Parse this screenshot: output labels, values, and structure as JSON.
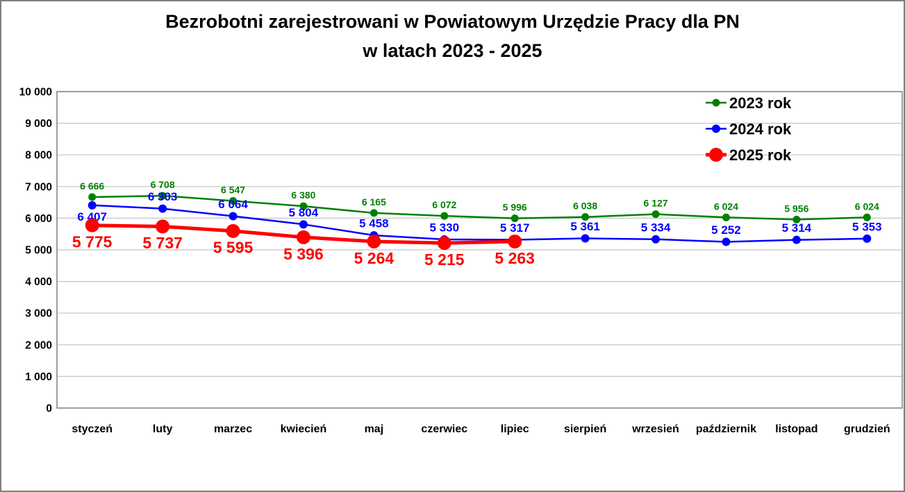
{
  "figure": {
    "title_line1": "Bezrobotni zarejestrowani w Powiatowym Urzędzie Pracy dla PN",
    "title_line2": "w latach 2023 - 2025"
  },
  "chart_data": {
    "type": "line",
    "title": "Bezrobotni zarejestrowani w Powiatowym Urzędzie Pracy dla PN w latach 2023 - 2025",
    "categories": [
      "styczeń",
      "luty",
      "marzec",
      "kwiecień",
      "maj",
      "czerwiec",
      "lipiec",
      "sierpień",
      "wrzesień",
      "październik",
      "listopad",
      "grudzień"
    ],
    "series": [
      {
        "name": "2023 rok",
        "color": "#008000",
        "values": [
          6666,
          6708,
          6547,
          6380,
          6165,
          6072,
          5996,
          6038,
          6127,
          6024,
          5956,
          6024
        ],
        "data_labels": [
          "6 666",
          "6 708",
          "6 547",
          "6 380",
          "6 165",
          "6 072",
          "5 996",
          "6 038",
          "6 127",
          "6 024",
          "5 956",
          "6 024"
        ]
      },
      {
        "name": "2024 rok",
        "color": "#0000ff",
        "values": [
          6407,
          6303,
          6064,
          5804,
          5458,
          5330,
          5317,
          5361,
          5334,
          5252,
          5314,
          5353
        ],
        "data_labels": [
          "6 407",
          "6 303",
          "6 064",
          "5 804",
          "5 458",
          "5 330",
          "5 317",
          "5 361",
          "5 334",
          "5 252",
          "5 314",
          "5 353"
        ]
      },
      {
        "name": "2025 rok",
        "color": "#ff0000",
        "values": [
          5775,
          5737,
          5595,
          5396,
          5264,
          5215,
          5263
        ],
        "data_labels": [
          "5 775",
          "5 737",
          "5 595",
          "5 396",
          "5 264",
          "5 215",
          "5 263"
        ]
      }
    ],
    "xlabel": "",
    "ylabel": "",
    "ylim": [
      0,
      10000
    ],
    "y_tick_step": 1000,
    "y_tick_labels": [
      "0",
      "1 000",
      "2 000",
      "3 000",
      "4 000",
      "5 000",
      "6 000",
      "7 000",
      "8 000",
      "9 000",
      "10 000"
    ],
    "grid": true,
    "legend_position": "top-right",
    "legend_entries": [
      "2023 rok",
      "2024 rok",
      "2025 rok"
    ],
    "number_format": "space thousands separator"
  },
  "colors": {
    "background": "#ffffff",
    "outer_border": "#7f7f7f",
    "gridline": "#c3c3c3",
    "plot_border": "#808080",
    "text": "#000000"
  }
}
